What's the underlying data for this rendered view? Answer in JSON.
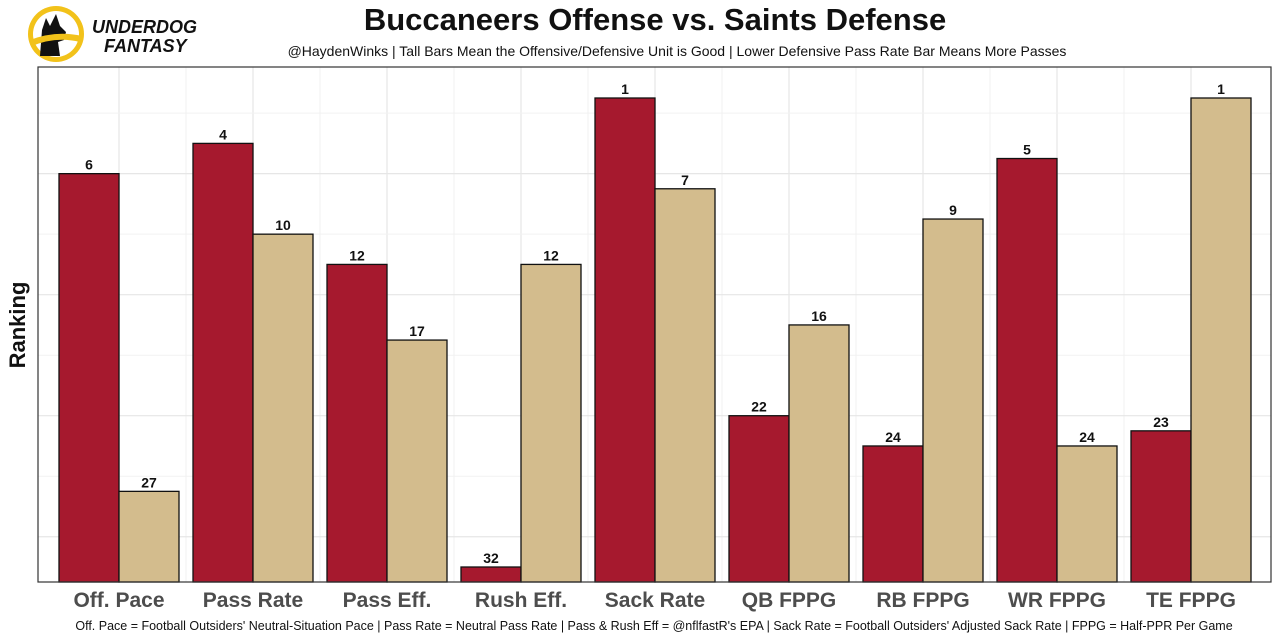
{
  "brand": {
    "logo_line1": "UNDERDOG",
    "logo_line2": "FANTASY",
    "logo_color": "#f2c21a"
  },
  "chart_data": {
    "type": "bar",
    "title": "Buccaneers Offense vs. Saints Defense",
    "subtitle": "@HaydenWinks | Tall Bars Mean the Offensive/Defensive Unit is Good | Lower Defensive Pass Rate Bar Means More Passes",
    "caption": "Off. Pace = Football Outsiders' Neutral-Situation Pace | Pass Rate = Neutral Pass Rate | Pass & Rush Eff = @nflfastR's EPA | Sack Rate = Football Outsiders' Adjusted Sack Rate | FPPG = Half-PPR Per Game",
    "xlabel": "",
    "ylabel": "Ranking",
    "rank_scale": [
      1,
      32
    ],
    "grid": true,
    "legend": "none",
    "categories": [
      "Off. Pace",
      "Pass Rate",
      "Pass Eff.",
      "Rush Eff.",
      "Sack Rate",
      "QB FPPG",
      "RB FPPG",
      "WR FPPG",
      "TE FPPG"
    ],
    "series": [
      {
        "name": "Buccaneers Offense",
        "color": "#a6192e",
        "values": [
          6,
          4,
          12,
          32,
          1,
          22,
          24,
          5,
          23
        ]
      },
      {
        "name": "Saints Defense",
        "color": "#d3bc8d",
        "values": [
          27,
          10,
          17,
          12,
          7,
          16,
          9,
          24,
          1
        ]
      }
    ]
  }
}
